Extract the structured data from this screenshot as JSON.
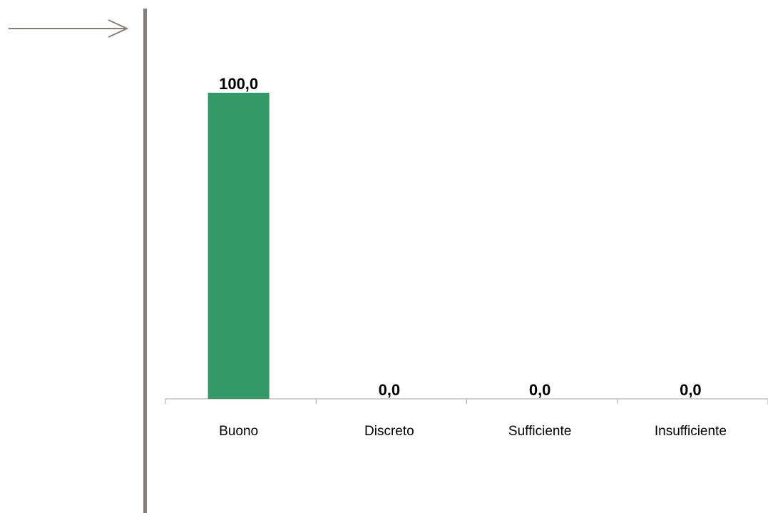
{
  "chart_data": {
    "type": "bar",
    "categories": [
      "Buono",
      "Discreto",
      "Sufficiente",
      "Insufficiente"
    ],
    "values": [
      100.0,
      0.0,
      0.0,
      0.0
    ],
    "data_labels": [
      "100,0",
      "0,0",
      "0,0",
      "0,0"
    ],
    "ylim": [
      0,
      100
    ],
    "grid": false,
    "bar_color": "#339966",
    "decoration_color": "#8b7d77"
  }
}
